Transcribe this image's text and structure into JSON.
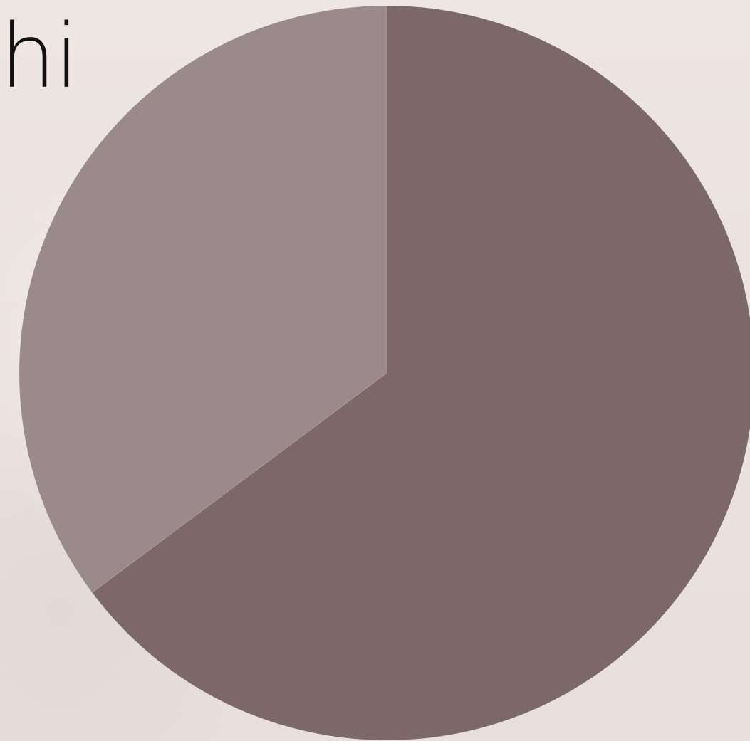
{
  "title_fragment": "hi",
  "chart_data": {
    "type": "pie",
    "values": [
      64.8,
      35.2
    ],
    "colors": [
      "#7c6868",
      "#9b8a8b"
    ]
  }
}
